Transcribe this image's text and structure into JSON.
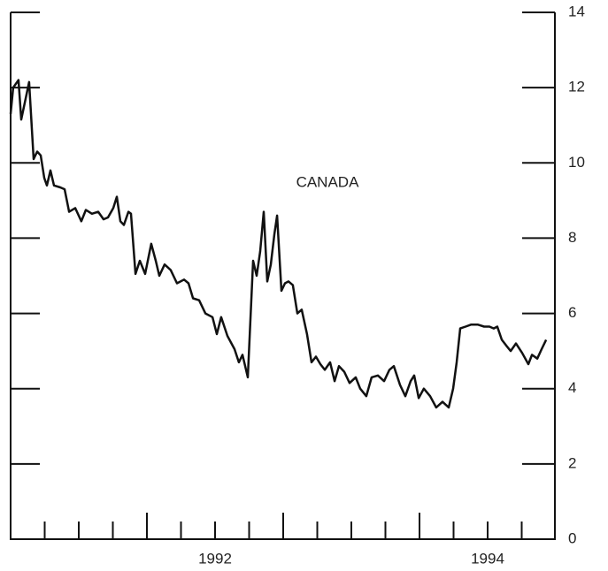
{
  "chart_data": {
    "type": "line",
    "title": "CANADA",
    "x": [
      1991.0,
      1991.019,
      1991.058,
      1991.078,
      1991.104,
      1991.136,
      1991.169,
      1991.195,
      1991.221,
      1991.247,
      1991.266,
      1991.292,
      1991.318,
      1991.364,
      1991.396,
      1991.429,
      1991.474,
      1991.519,
      1991.552,
      1991.597,
      1991.643,
      1991.682,
      1991.714,
      1991.753,
      1991.779,
      1991.805,
      1991.831,
      1991.864,
      1991.883,
      1991.916,
      1991.948,
      1991.987,
      1992.032,
      1992.065,
      1992.091,
      1992.13,
      1992.175,
      1992.221,
      1992.273,
      1992.305,
      1992.338,
      1992.383,
      1992.429,
      1992.481,
      1992.513,
      1992.545,
      1992.591,
      1992.643,
      1992.675,
      1992.701,
      1992.74,
      1992.779,
      1992.805,
      1992.831,
      1992.857,
      1992.883,
      1992.909,
      1992.935,
      1992.955,
      1992.987,
      1993.013,
      1993.039,
      1993.071,
      1993.104,
      1993.136,
      1993.175,
      1993.208,
      1993.24,
      1993.273,
      1993.305,
      1993.344,
      1993.377,
      1993.409,
      1993.448,
      1993.487,
      1993.532,
      1993.565,
      1993.61,
      1993.649,
      1993.695,
      1993.74,
      1993.779,
      1993.812,
      1993.857,
      1993.896,
      1993.935,
      1993.961,
      1993.994,
      1994.032,
      1994.078,
      1994.123,
      1994.169,
      1994.214,
      1994.247,
      1994.273,
      1994.299,
      1994.338,
      1994.377,
      1994.429,
      1994.474,
      1994.513,
      1994.545,
      1994.571,
      1994.604,
      1994.636,
      1994.669,
      1994.708,
      1994.753,
      1994.799,
      1994.825,
      1994.864,
      1994.896,
      1994.929
    ],
    "series": [
      {
        "color": "#111111",
        "values": [
          11.3,
          12.0,
          12.2,
          11.15,
          11.6,
          12.15,
          10.1,
          10.3,
          10.2,
          9.6,
          9.4,
          9.8,
          9.4,
          9.35,
          9.3,
          8.7,
          8.8,
          8.45,
          8.75,
          8.65,
          8.7,
          8.5,
          8.55,
          8.8,
          9.1,
          8.45,
          8.35,
          8.7,
          8.65,
          7.05,
          7.4,
          7.05,
          7.85,
          7.4,
          7.0,
          7.3,
          7.15,
          6.8,
          6.9,
          6.8,
          6.4,
          6.35,
          6.0,
          5.9,
          5.45,
          5.9,
          5.4,
          5.05,
          4.7,
          4.9,
          4.3,
          7.4,
          7.0,
          7.65,
          8.7,
          6.85,
          7.3,
          8.1,
          8.6,
          6.6,
          6.8,
          6.85,
          6.75,
          6.0,
          6.1,
          5.45,
          4.7,
          4.85,
          4.65,
          4.5,
          4.7,
          4.2,
          4.6,
          4.45,
          4.15,
          4.3,
          4.0,
          3.8,
          4.3,
          4.35,
          4.2,
          4.5,
          4.6,
          4.1,
          3.8,
          4.2,
          4.35,
          3.75,
          4.0,
          3.8,
          3.5,
          3.65,
          3.5,
          4.0,
          4.7,
          5.6,
          5.65,
          5.7,
          5.7,
          5.65,
          5.65,
          5.6,
          5.65,
          5.3,
          5.15,
          5.0,
          5.2,
          4.95,
          4.65,
          4.9,
          4.8,
          5.05,
          5.3
        ]
      }
    ],
    "xlim": [
      1991,
      1995
    ],
    "xticks": [
      {
        "value": 1992.5,
        "label": "1992"
      },
      {
        "value": 1994.5,
        "label": "1994"
      }
    ],
    "x_minor_ticks": [
      1991.25,
      1991.5,
      1991.75,
      1992,
      1992.25,
      1992.5,
      1992.75,
      1993,
      1993.25,
      1993.5,
      1993.75,
      1994,
      1994.25,
      1994.5,
      1994.75
    ],
    "ylim": [
      0,
      14
    ],
    "yticks": [
      0,
      2,
      4,
      6,
      8,
      10,
      12,
      14
    ]
  }
}
